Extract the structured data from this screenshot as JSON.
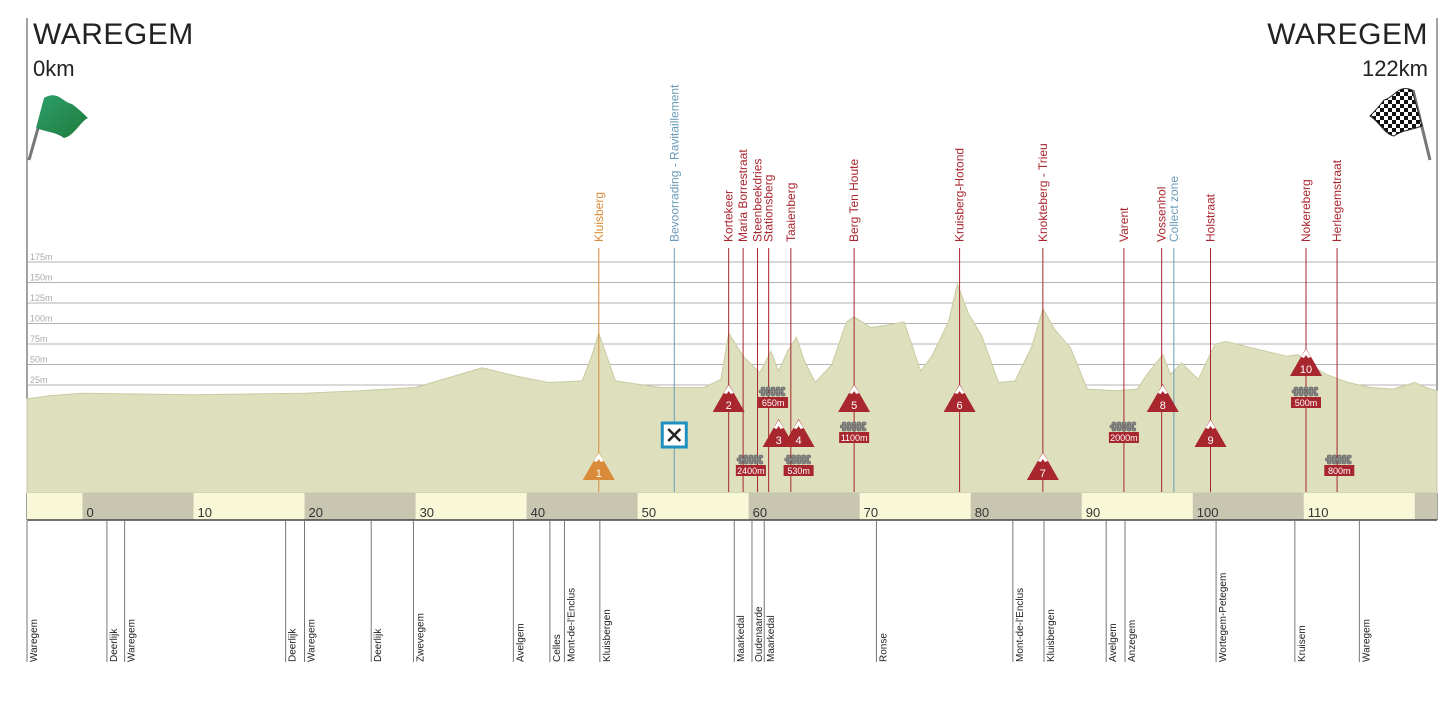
{
  "start": {
    "town": "WAREGEM",
    "km": "0km"
  },
  "finish": {
    "town": "WAREGEM",
    "km": "122km"
  },
  "chart_data": {
    "type": "area",
    "xlabel": "",
    "ylabel": "",
    "xlim": [
      -5,
      122
    ],
    "ylim": [
      0,
      175
    ],
    "y_ticks": [
      "25m",
      "50m",
      "75m",
      "100m",
      "125m",
      "150m",
      "175m"
    ],
    "x_ticks": [
      "0",
      "10",
      "20",
      "30",
      "40",
      "50",
      "60",
      "70",
      "80",
      "90",
      "100",
      "110"
    ],
    "profile": {
      "km": [
        -5,
        -3,
        0,
        5,
        10,
        15,
        20,
        25,
        30,
        33,
        36,
        39,
        42,
        45,
        45.8,
        46.5,
        48,
        52,
        56,
        57.5,
        58.2,
        59.5,
        61,
        62,
        62.7,
        63.5,
        64.3,
        65,
        66,
        67.5,
        68.8,
        69.5,
        71,
        72.5,
        74,
        75.5,
        76.5,
        78,
        78.8,
        79.8,
        81,
        82.5,
        84,
        85.5,
        86.5,
        87.5,
        89,
        90.5,
        93,
        95,
        96,
        97.3,
        98,
        99,
        100.5,
        102,
        103,
        106,
        108.5,
        109.5,
        110.5,
        112,
        114,
        116,
        118,
        120,
        121,
        122
      ],
      "elevation": [
        8,
        12,
        15,
        14,
        13,
        14,
        15,
        18,
        22,
        34,
        46,
        36,
        28,
        30,
        58,
        88,
        30,
        22,
        22,
        32,
        88,
        60,
        40,
        66,
        42,
        66,
        83,
        55,
        28,
        50,
        102,
        108,
        95,
        98,
        102,
        42,
        60,
        102,
        148,
        112,
        85,
        28,
        30,
        72,
        118,
        94,
        70,
        20,
        18,
        20,
        40,
        62,
        38,
        52,
        32,
        75,
        78,
        68,
        60,
        62,
        50,
        38,
        28,
        22,
        20,
        28,
        22,
        18
      ]
    },
    "climbs": [
      {
        "n": "1",
        "name": "Kluisberg",
        "km": 46.5,
        "color": "#d98b3a"
      },
      {
        "n": "2",
        "name": "Kortekeer",
        "km": 58.2,
        "color": "#a8262e"
      },
      {
        "n": "3",
        "name": "Steenbeekdries",
        "km": 62.7,
        "color": "#a8262e"
      },
      {
        "n": "4",
        "name": "Taaienberg",
        "km": 64.5,
        "color": "#a8262e"
      },
      {
        "n": "5",
        "name": "Berg Ten Houte",
        "km": 69.5,
        "color": "#a8262e"
      },
      {
        "n": "6",
        "name": "Kruisberg-Hotond",
        "km": 79,
        "color": "#a8262e"
      },
      {
        "n": "7",
        "name": "Knokteberg - Trieu",
        "km": 86.5,
        "color": "#a8262e"
      },
      {
        "n": "8",
        "name": "Vossenhol",
        "km": 97.3,
        "color": "#a8262e"
      },
      {
        "n": "9",
        "name": "Holstraat",
        "km": 101.6,
        "color": "#a8262e"
      },
      {
        "n": "10",
        "name": "Nokereberg",
        "km": 110.2,
        "color": "#a8262e"
      }
    ],
    "cobbles": [
      {
        "label": "650m",
        "name": "Maria Borrestraat",
        "km": 62.2
      },
      {
        "label": "2400m",
        "name": "Stationsberg",
        "km": 60.2
      },
      {
        "label": "530m",
        "name": "Taaienberg",
        "km": 64.5
      },
      {
        "label": "1100m",
        "name": "Berg Ten Houte",
        "km": 69.5
      },
      {
        "label": "2000m",
        "name": "Varent",
        "km": 93.8
      },
      {
        "label": "500m",
        "name": "Nokereberg",
        "km": 110.2
      },
      {
        "label": "800m",
        "name": "Herlegemstraat",
        "km": 113.2
      }
    ],
    "markers": [
      {
        "name": "Kluisberg",
        "km": 46.5,
        "color": "#d98b3a"
      },
      {
        "name": "Bevoorrading - Ravitaillement",
        "km": 53.3,
        "color": "#6a9bb8"
      },
      {
        "name": "Kortekeer",
        "km": 58.2,
        "color": "#a8262e"
      },
      {
        "name": "Maria Borrestraat",
        "km": 59.5,
        "color": "#a8262e"
      },
      {
        "name": "Steenbeekdries",
        "km": 60.8,
        "color": "#a8262e"
      },
      {
        "name": "Stationsberg",
        "km": 61.8,
        "color": "#a8262e"
      },
      {
        "name": "Taaienberg",
        "km": 63.8,
        "color": "#a8262e"
      },
      {
        "name": "Berg Ten Houte",
        "km": 69.5,
        "color": "#a8262e"
      },
      {
        "name": "Kruisberg-Hotond",
        "km": 79,
        "color": "#a8262e"
      },
      {
        "name": "Knokteberg - Trieu",
        "km": 86.5,
        "color": "#a8262e"
      },
      {
        "name": "Varent",
        "km": 93.8,
        "color": "#a8262e"
      },
      {
        "name": "Vossenhol",
        "km": 97.2,
        "color": "#a8262e"
      },
      {
        "name": "Collect zone",
        "km": 98.3,
        "color": "#6a9bb8"
      },
      {
        "name": "Holstraat",
        "km": 101.6,
        "color": "#a8262e"
      },
      {
        "name": "Nokereberg",
        "km": 110.2,
        "color": "#a8262e"
      },
      {
        "name": "Herlegemstraat",
        "km": 113.0,
        "color": "#a8262e"
      }
    ],
    "feed_zone_km": 53.3,
    "towns": [
      {
        "name": "Waregem",
        "km": -5
      },
      {
        "name": "Deerlijk",
        "km": 2.2
      },
      {
        "name": "Waregem",
        "km": 3.8
      },
      {
        "name": "Deerlijk",
        "km": 18.3
      },
      {
        "name": "Waregem",
        "km": 20
      },
      {
        "name": "Deerlijk",
        "km": 26
      },
      {
        "name": "Zwevegem",
        "km": 29.8
      },
      {
        "name": "Avelgem",
        "km": 38.8
      },
      {
        "name": "Celles",
        "km": 42.1
      },
      {
        "name": "Mont-de-l'Enclus",
        "km": 43.4
      },
      {
        "name": "Kluisbergen",
        "km": 46.6
      },
      {
        "name": "Maarkedal",
        "km": 58.7
      },
      {
        "name": "Oudenaarde",
        "km": 60.3
      },
      {
        "name": "Maarkedal",
        "km": 61.4
      },
      {
        "name": "Ronse",
        "km": 71.5
      },
      {
        "name": "Mont-de-l'Enclus",
        "km": 83.8
      },
      {
        "name": "Kluisbergen",
        "km": 86.6
      },
      {
        "name": "Avelgem",
        "km": 92.2
      },
      {
        "name": "Anzegem",
        "km": 93.9
      },
      {
        "name": "Wortegem-Petegem",
        "km": 102.1
      },
      {
        "name": "Kruisem",
        "km": 109.2
      },
      {
        "name": "Waregem",
        "km": 115
      }
    ]
  }
}
